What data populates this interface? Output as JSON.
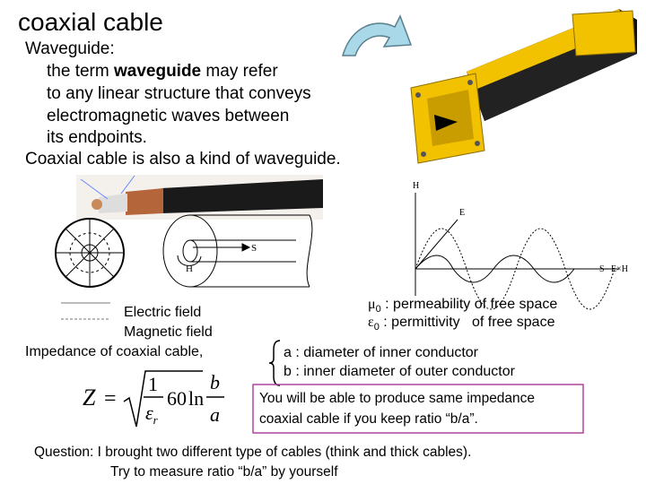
{
  "title": "coaxial cable",
  "waveguide_text": {
    "heading": "Waveguide:",
    "line1": {
      "before": "the term ",
      "bold": "waveguide",
      "after": " may refer"
    },
    "line2": "to any linear structure that conveys",
    "line3": "electromagnetic waves between",
    "line4": "its endpoints.",
    "conclusion": "Coaxial cable is also a kind of waveguide."
  },
  "diagram_labels": {
    "s": "S",
    "h": "H",
    "wave_h": "H",
    "wave_e": "E",
    "wave_s": "S– E×H"
  },
  "legend": {
    "electric": "Electric field",
    "magnetic": "Magnetic field"
  },
  "impedance_label": "Impedance of coaxial cable,",
  "formula": {
    "z": "Z",
    "eq": "=",
    "num": "1",
    "eps": "ε",
    "eps_sub": "r",
    "coef": "60",
    "ln": "ln",
    "b": "b",
    "a": "a"
  },
  "constants": [
    {
      "symbol": "μ",
      "sub": "0",
      "text": " : permeability of free space"
    },
    {
      "symbol": "ε",
      "sub": "0",
      "text": " : permittivity   of free space"
    }
  ],
  "dimensions": [
    "a : diameter of inner conductor",
    "b : inner diameter of outer conductor"
  ],
  "note": [
    "You will be able to produce same impedance",
    "coaxial cable if you keep ratio “b/a”."
  ],
  "question": [
    "Question: I brought two different type of cables (think and thick cables).",
    "Try to measure ratio “b/a” by yourself"
  ]
}
